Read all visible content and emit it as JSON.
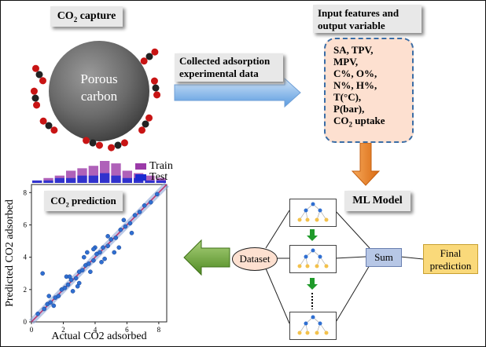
{
  "top_left": {
    "title_main": "CO",
    "title_sub": "2",
    "title_tail": " capture",
    "particle_label_1": "Porous",
    "particle_label_2": "carbon"
  },
  "arrow_label": {
    "line1": "Collected adsorption",
    "line2": "experimental data"
  },
  "features": {
    "title_line1": "Input features and",
    "title_line2": "output variable",
    "items": [
      "SA, TPV,",
      "MPV,",
      "C%, O%,",
      "N%, H%,",
      "T(°C),",
      "P(bar),"
    ],
    "last_main": "CO",
    "last_sub": "2",
    "last_tail": " uptake"
  },
  "ml": {
    "title": "ML Model",
    "dataset": "Dataset",
    "sum": "Sum",
    "final_line1": "Final",
    "final_line2": "prediction"
  },
  "prediction": {
    "title_main": "CO",
    "title_sub": "2",
    "title_tail": " prediction"
  },
  "chart_data": {
    "type": "scatter",
    "xlabel": "Actual CO2 adsorbed",
    "ylabel": "Predicted CO2 adsorbed",
    "xlim": [
      0,
      8.5
    ],
    "ylim": [
      0,
      8.5
    ],
    "xticks": [
      0,
      2,
      4,
      6,
      8
    ],
    "yticks": [
      0,
      2,
      4,
      6,
      8
    ],
    "legend": [
      "Train",
      "Test"
    ],
    "legend_position": "top-right",
    "colors": {
      "train": "#9b3aa8",
      "test": "#1b2ad0",
      "points": "#2f6fd1",
      "line": "#c0306a"
    },
    "series": [
      {
        "name": "Train",
        "x": [
          0.4,
          0.8,
          1.0,
          1.2,
          1.5,
          1.7,
          1.9,
          2.1,
          2.3,
          2.5,
          2.8,
          3.0,
          3.2,
          3.4,
          3.6,
          3.9,
          4.1,
          4.3,
          4.5,
          4.8,
          5.0,
          5.3,
          5.6,
          5.9,
          6.2,
          6.5,
          6.8,
          7.1,
          7.5,
          7.9
        ],
        "y": [
          0.5,
          0.8,
          1.1,
          1.2,
          1.5,
          1.6,
          2.0,
          2.1,
          2.3,
          2.6,
          2.7,
          3.1,
          3.2,
          3.5,
          3.6,
          3.8,
          4.2,
          4.3,
          4.6,
          4.7,
          5.1,
          5.2,
          5.7,
          5.9,
          6.1,
          6.6,
          6.8,
          7.2,
          7.4,
          7.9
        ]
      },
      {
        "name": "Test",
        "x": [
          0.7,
          1.4,
          2.2,
          2.6,
          3.0,
          3.3,
          3.7,
          4.0,
          4.4,
          4.8,
          5.2,
          5.5,
          1.1,
          2.9,
          3.5,
          4.6,
          5.8,
          6.3,
          2.4,
          3.9
        ],
        "y": [
          3.0,
          1.0,
          2.8,
          1.9,
          2.4,
          4.0,
          3.1,
          4.6,
          3.7,
          5.3,
          4.3,
          4.6,
          1.6,
          2.2,
          4.3,
          3.9,
          6.3,
          5.5,
          2.8,
          4.5
        ]
      }
    ],
    "hist_train": [
      1,
      2,
      3,
      5,
      6,
      7,
      9,
      8,
      5,
      4,
      3,
      2
    ],
    "hist_test": [
      1,
      1,
      2,
      2,
      3,
      3,
      4,
      3,
      2,
      2,
      1,
      1
    ]
  }
}
